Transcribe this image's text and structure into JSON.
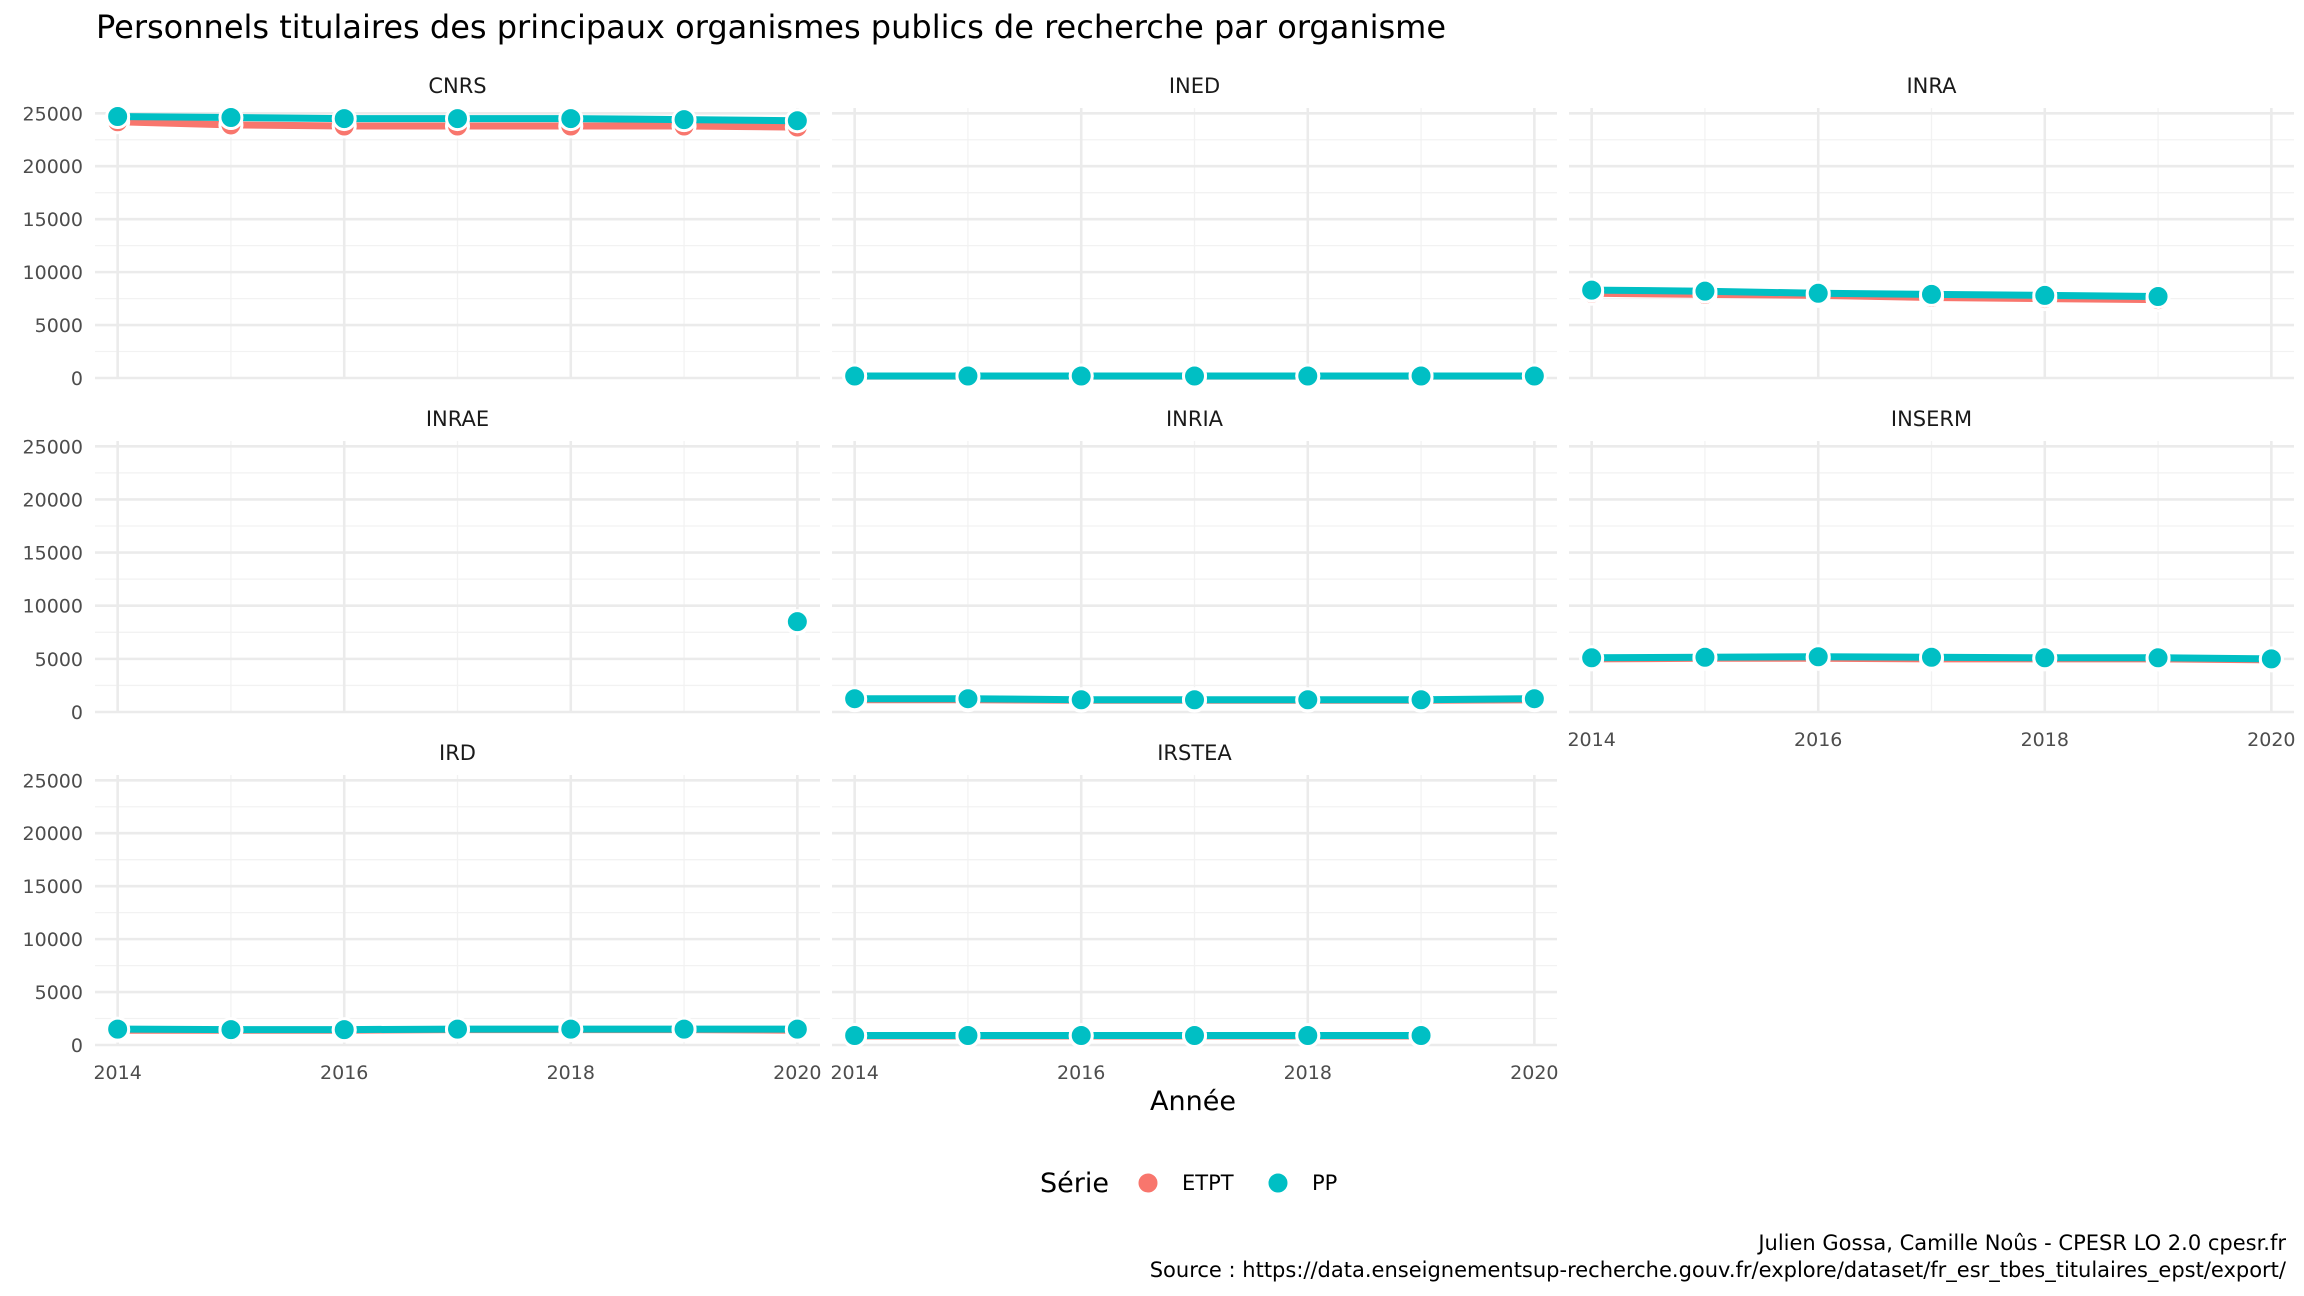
{
  "chart_data": {
    "type": "line",
    "title": "Personnels titulaires des principaux organismes publics de recherche par organisme",
    "xlabel": "Année",
    "ylabel": "",
    "x_ticks": [
      2014,
      2016,
      2018,
      2020
    ],
    "y_ticks": [
      0,
      5000,
      10000,
      15000,
      20000,
      25000
    ],
    "xlim": [
      2013.8,
      2020.2
    ],
    "ylim": [
      0,
      25500
    ],
    "grid": true,
    "legend": {
      "title": "Série",
      "position": "bottom",
      "entries": [
        {
          "name": "ETPT",
          "color": "#F8766D"
        },
        {
          "name": "PP",
          "color": "#00BFC4"
        }
      ]
    },
    "caption": [
      "Julien Gossa, Camille Noûs - CPESR LO 2.0 cpesr.fr",
      "Source : https://data.enseignementsup-recherche.gouv.fr/explore/dataset/fr_esr_tbes_titulaires_epst/export/"
    ],
    "panels": [
      {
        "name": "CNRS",
        "series": [
          {
            "name": "ETPT",
            "x": [
              2014,
              2015,
              2016,
              2017,
              2018,
              2019,
              2020
            ],
            "values": [
              24200,
              23900,
              23800,
              23800,
              23800,
              23800,
              23700
            ]
          },
          {
            "name": "PP",
            "x": [
              2014,
              2015,
              2016,
              2017,
              2018,
              2019,
              2020
            ],
            "values": [
              24700,
              24600,
              24500,
              24500,
              24500,
              24400,
              24300
            ]
          }
        ]
      },
      {
        "name": "INED",
        "series": [
          {
            "name": "ETPT",
            "x": [
              2014,
              2015,
              2016,
              2017,
              2018,
              2019,
              2020
            ],
            "values": [
              180,
              180,
              180,
              180,
              180,
              180,
              180
            ]
          },
          {
            "name": "PP",
            "x": [
              2014,
              2015,
              2016,
              2017,
              2018,
              2019,
              2020
            ],
            "values": [
              190,
              190,
              190,
              190,
              190,
              190,
              190
            ]
          }
        ]
      },
      {
        "name": "INRA",
        "series": [
          {
            "name": "ETPT",
            "x": [
              2014,
              2015,
              2016,
              2017,
              2018,
              2019
            ],
            "values": [
              8000,
              7900,
              7800,
              7600,
              7500,
              7400
            ]
          },
          {
            "name": "PP",
            "x": [
              2014,
              2015,
              2016,
              2017,
              2018,
              2019
            ],
            "values": [
              8300,
              8200,
              8000,
              7900,
              7800,
              7700
            ]
          }
        ]
      },
      {
        "name": "INRAE",
        "series": [
          {
            "name": "ETPT",
            "x": [
              2020
            ],
            "values": [
              8400
            ]
          },
          {
            "name": "PP",
            "x": [
              2020
            ],
            "values": [
              8500
            ]
          }
        ]
      },
      {
        "name": "INRIA",
        "series": [
          {
            "name": "ETPT",
            "x": [
              2014,
              2015,
              2016,
              2017,
              2018,
              2019,
              2020
            ],
            "values": [
              1150,
              1150,
              1100,
              1100,
              1100,
              1100,
              1150
            ]
          },
          {
            "name": "PP",
            "x": [
              2014,
              2015,
              2016,
              2017,
              2018,
              2019,
              2020
            ],
            "values": [
              1250,
              1250,
              1150,
              1150,
              1150,
              1150,
              1250
            ]
          }
        ]
      },
      {
        "name": "INSERM",
        "series": [
          {
            "name": "ETPT",
            "x": [
              2014,
              2015,
              2016,
              2017,
              2018,
              2019,
              2020
            ],
            "values": [
              5000,
              5050,
              5050,
              5000,
              5000,
              5000,
              4900
            ]
          },
          {
            "name": "PP",
            "x": [
              2014,
              2015,
              2016,
              2017,
              2018,
              2019,
              2020
            ],
            "values": [
              5100,
              5150,
              5200,
              5150,
              5100,
              5100,
              5000
            ]
          }
        ]
      },
      {
        "name": "IRD",
        "series": [
          {
            "name": "ETPT",
            "x": [
              2014,
              2015,
              2016,
              2017,
              2018,
              2019,
              2020
            ],
            "values": [
              1400,
              1400,
              1400,
              1450,
              1450,
              1450,
              1400
            ]
          },
          {
            "name": "PP",
            "x": [
              2014,
              2015,
              2016,
              2017,
              2018,
              2019,
              2020
            ],
            "values": [
              1500,
              1450,
              1450,
              1500,
              1500,
              1500,
              1500
            ]
          }
        ]
      },
      {
        "name": "IRSTEA",
        "series": [
          {
            "name": "ETPT",
            "x": [
              2014,
              2015,
              2016,
              2017,
              2018,
              2019
            ],
            "values": [
              850,
              850,
              850,
              850,
              850,
              850
            ]
          },
          {
            "name": "PP",
            "x": [
              2014,
              2015,
              2016,
              2017,
              2018,
              2019
            ],
            "values": [
              900,
              900,
              900,
              900,
              900,
              900
            ]
          }
        ]
      }
    ]
  }
}
